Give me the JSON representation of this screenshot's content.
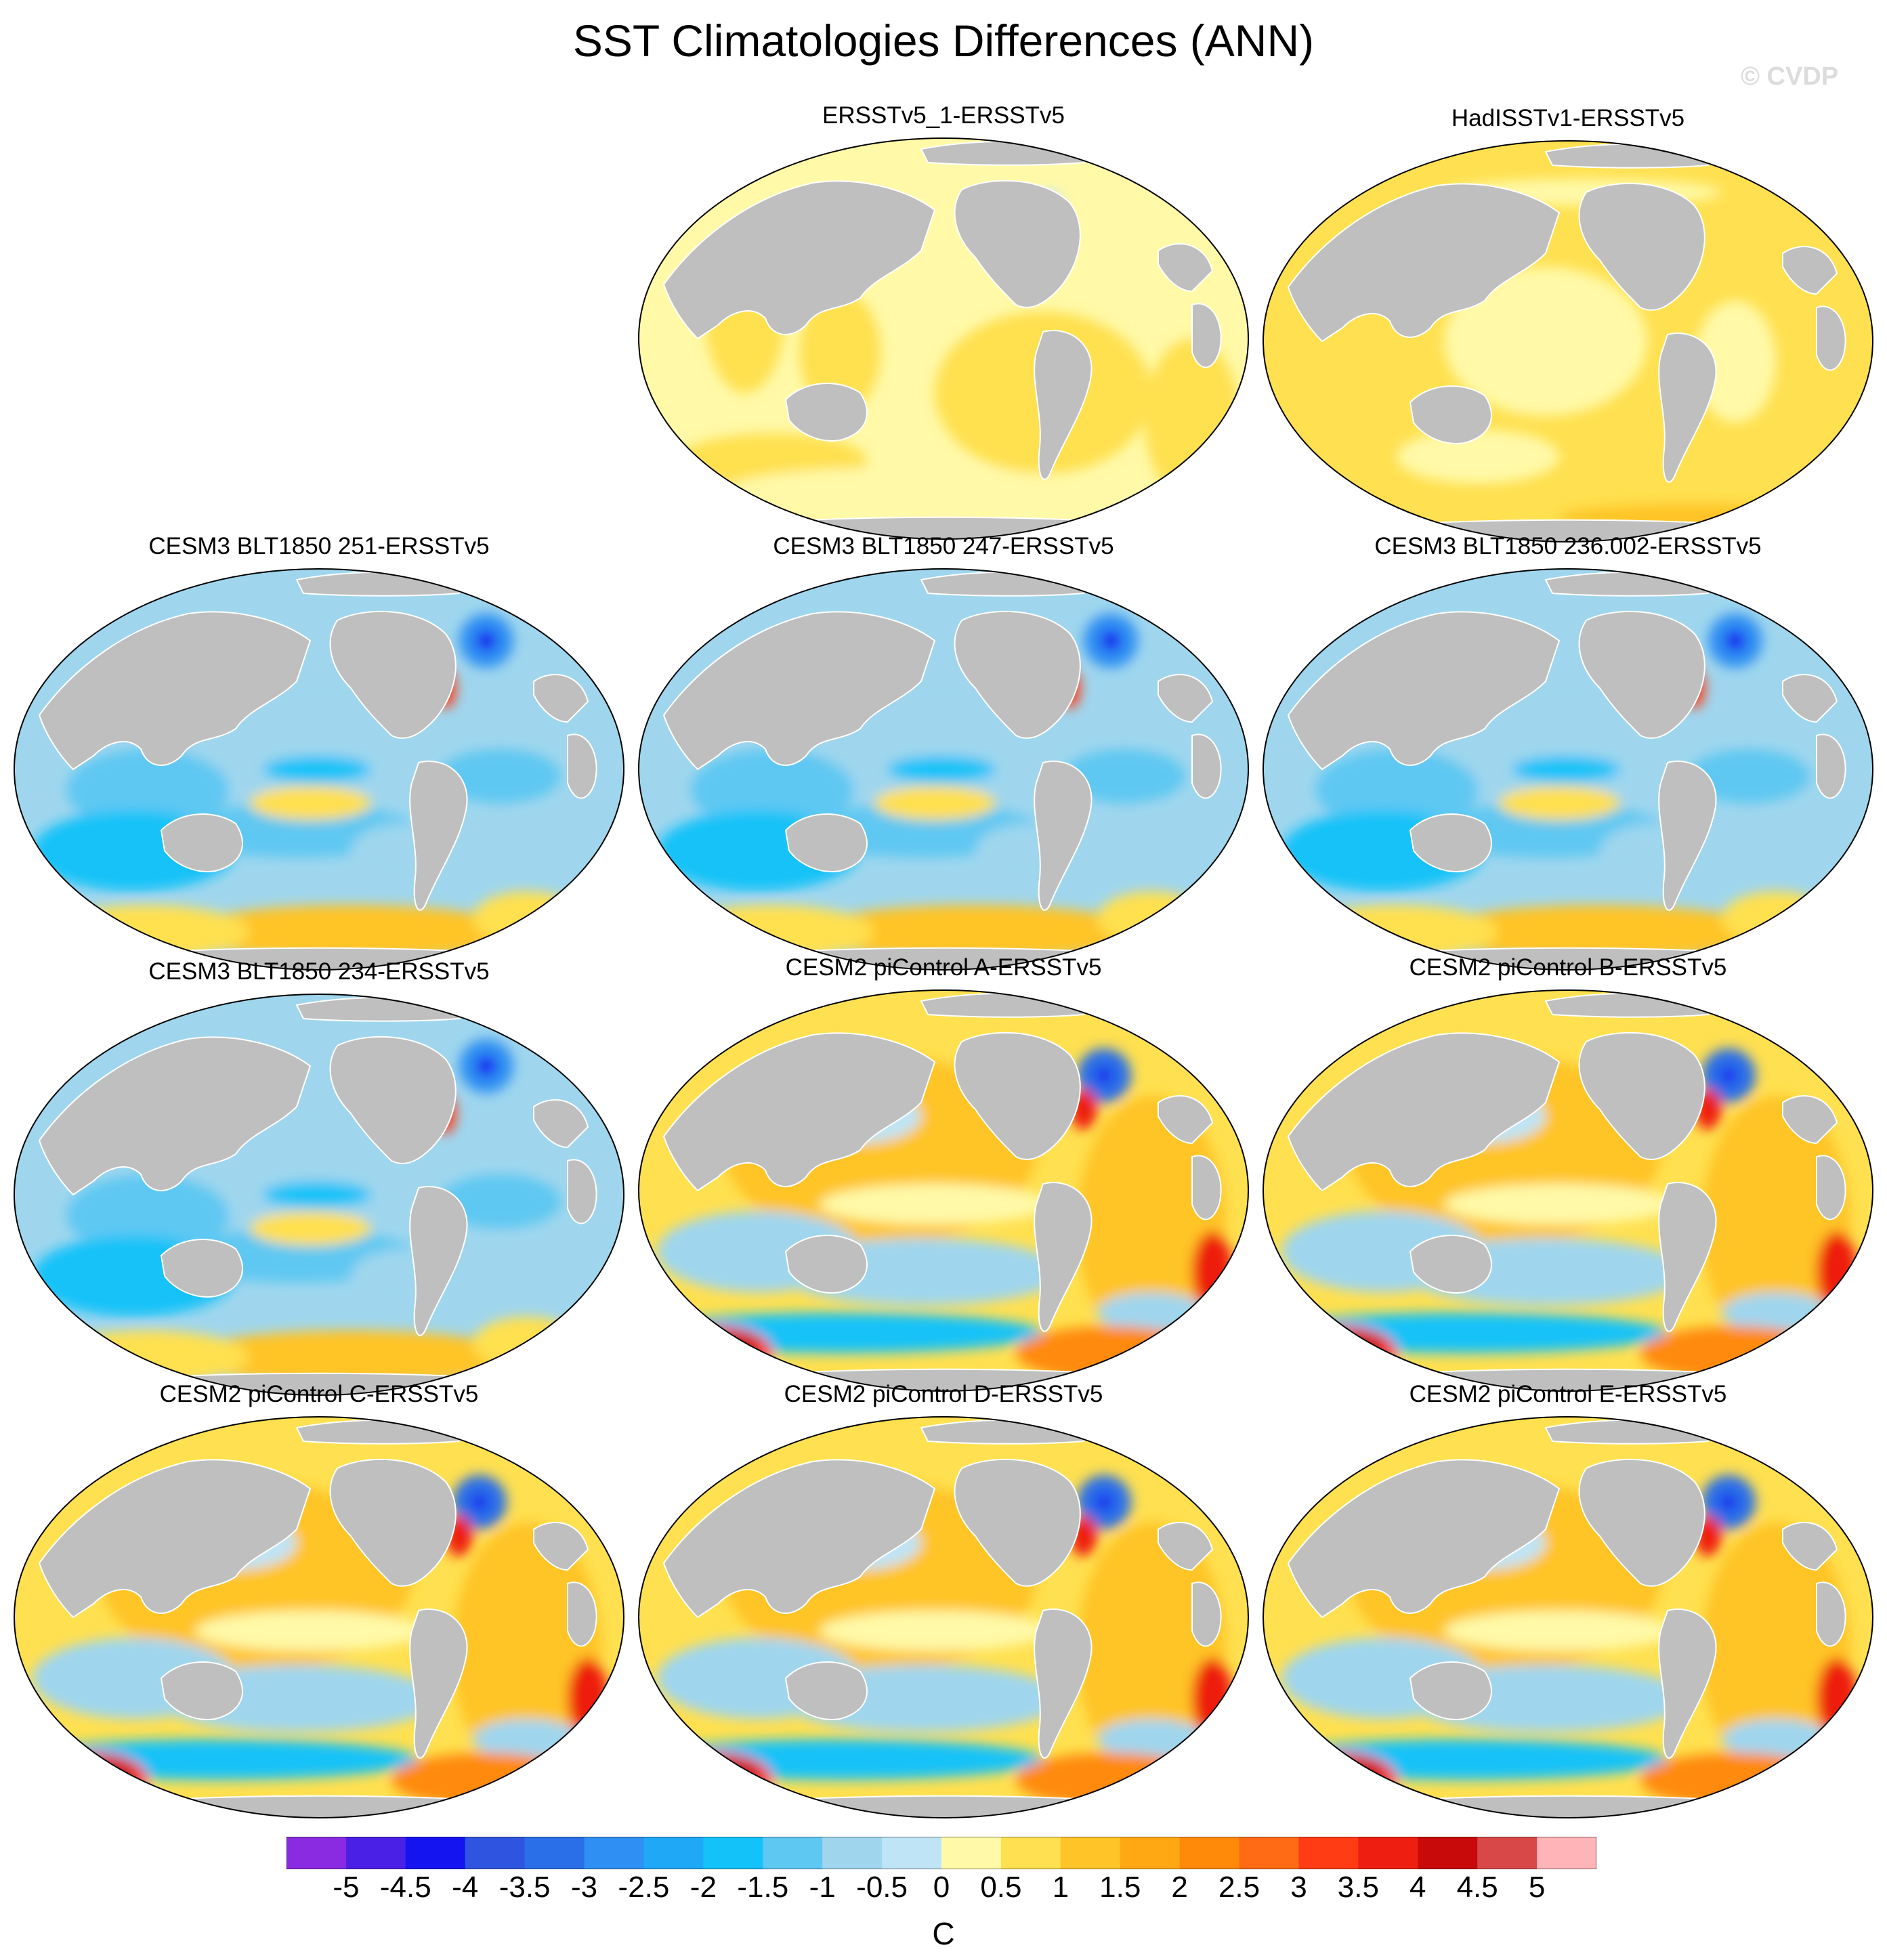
{
  "title": "SST Climatologies Differences (ANN)",
  "watermark": "© CVDP",
  "land_color": "#bfbfbf",
  "ocean_outline_color": "#ffffff",
  "panels": [
    {
      "label": "ERSSTv5_1-ERSSTv5",
      "pattern": "obs_small"
    },
    {
      "label": "HadISSTv1-ERSSTv5",
      "pattern": "obs_warm"
    },
    {
      "label": "CESM3 BLT1850 251-ERSSTv5",
      "pattern": "cool"
    },
    {
      "label": "CESM3 BLT1850 247-ERSSTv5",
      "pattern": "cool"
    },
    {
      "label": "CESM3 BLT1850 236.002-ERSSTv5",
      "pattern": "cool"
    },
    {
      "label": "CESM3 BLT1850 234-ERSSTv5",
      "pattern": "cool"
    },
    {
      "label": "CESM2 piControl A-ERSSTv5",
      "pattern": "warm"
    },
    {
      "label": "CESM2 piControl B-ERSSTv5",
      "pattern": "warm"
    },
    {
      "label": "CESM2 piControl C-ERSSTv5",
      "pattern": "warm"
    },
    {
      "label": "CESM2 piControl D-ERSSTv5",
      "pattern": "warm"
    },
    {
      "label": "CESM2 piControl E-ERSSTv5",
      "pattern": "warm"
    }
  ],
  "colorbar": {
    "colors": [
      "#8a2be2",
      "#4a1fe6",
      "#1414f0",
      "#2f55e0",
      "#2b6fe8",
      "#2f8ff2",
      "#1fa8f5",
      "#12c2f8",
      "#5fc8f2",
      "#9fd6ee",
      "#bfe4f5",
      "#fff9a8",
      "#ffe050",
      "#ffc428",
      "#ffa814",
      "#ff8a0a",
      "#ff6a14",
      "#ff3c14",
      "#ee1e10",
      "#c80a0a",
      "#d84848",
      "#ffb4b8"
    ],
    "ticks": [
      "-5",
      "-4.5",
      "-4",
      "-3.5",
      "-3",
      "-2.5",
      "-2",
      "-1.5",
      "-1",
      "-0.5",
      "0",
      "0.5",
      "1",
      "1.5",
      "2",
      "2.5",
      "3",
      "3.5",
      "4",
      "4.5",
      "5"
    ],
    "units": "C"
  }
}
